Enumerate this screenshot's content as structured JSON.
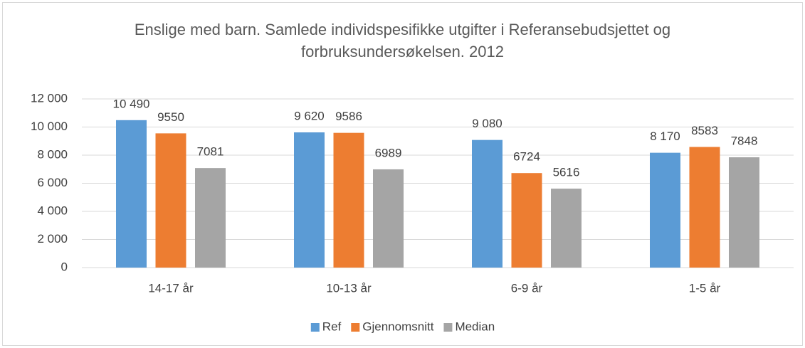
{
  "chart_data": {
    "type": "bar",
    "title": "Enslige med barn. Samlede individspesifikke utgifter i Referansebudsjettet og forbruksundersøkelsen. 2012",
    "categories": [
      "14-17 år",
      "10-13 år",
      "6-9 år",
      "1-5 år"
    ],
    "series": [
      {
        "name": "Ref",
        "color": "#5b9bd5",
        "values": [
          10490,
          9620,
          9080,
          8170
        ],
        "value_labels": [
          "10 490",
          "9 620",
          "9 080",
          "8 170"
        ]
      },
      {
        "name": "Gjennomsnitt",
        "color": "#ed7d31",
        "values": [
          9550,
          9586,
          6724,
          8583
        ]
      },
      {
        "name": "Median",
        "color": "#a5a5a5",
        "values": [
          7081,
          6989,
          5616,
          7848
        ]
      }
    ],
    "ylim": [
      0,
      12000
    ],
    "yticks": [
      0,
      {
        "value": 2000,
        "label": "2 000"
      },
      {
        "value": 4000,
        "label": "4 000"
      },
      {
        "value": 6000,
        "label": "6 000"
      },
      {
        "value": 8000,
        "label": "8 000"
      },
      {
        "value": 10000,
        "label": "10 000"
      },
      {
        "value": 12000,
        "label": "12 000"
      }
    ],
    "grid": true,
    "legend": "bottom"
  }
}
